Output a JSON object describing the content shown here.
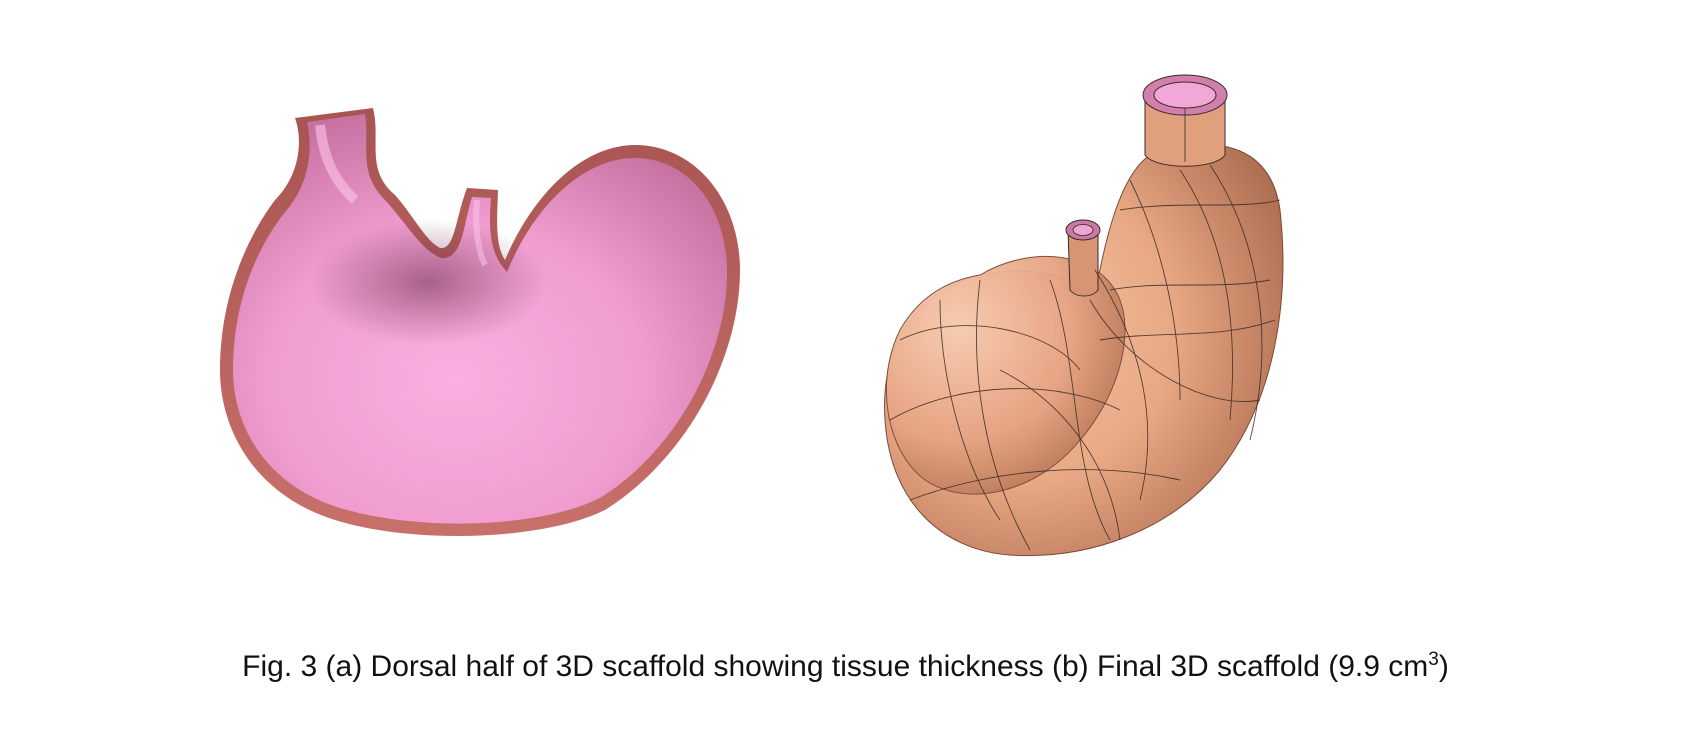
{
  "caption": {
    "text": "Fig. 3 (a) Dorsal half of 3D scaffold showing tissue thickness (b) Final 3D scaffold (9.9 cm",
    "superscript": "3",
    "closing": ")"
  },
  "colors": {
    "inner_surface": "#f2a0d2",
    "wall_cut": "#b55e5a",
    "scaffold_surface": "#e8a884",
    "mesh_lines": "#3a2a25",
    "tube_inner": "#e49ac8"
  }
}
